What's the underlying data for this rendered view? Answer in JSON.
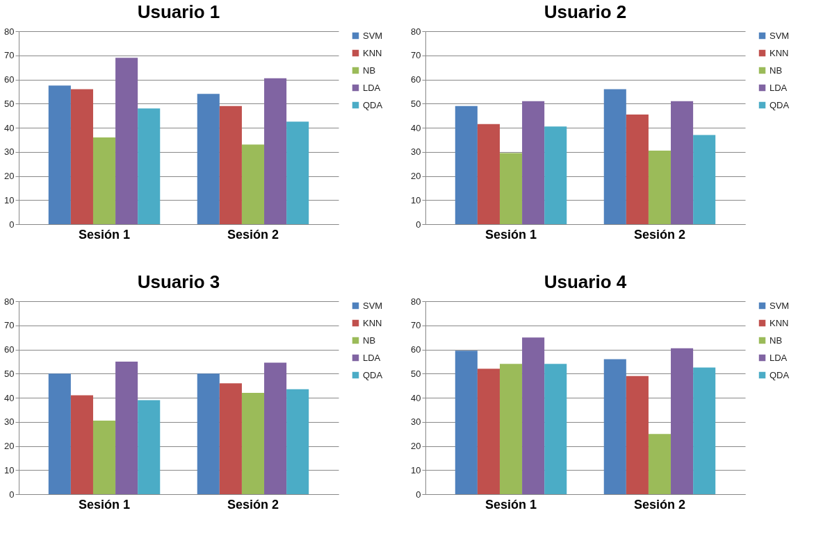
{
  "chart_data": [
    {
      "type": "bar",
      "title": "Usuario 1",
      "categories": [
        "Sesión 1",
        "Sesión 2"
      ],
      "ylim": [
        0,
        80
      ],
      "yticks": [
        0,
        10,
        20,
        30,
        40,
        50,
        60,
        70,
        80
      ],
      "grid": "y",
      "legend": "right",
      "series": [
        {
          "name": "SVM",
          "color": "#4f81bd",
          "values": [
            57.5,
            54
          ]
        },
        {
          "name": "KNN",
          "color": "#c0504d",
          "values": [
            56,
            49
          ]
        },
        {
          "name": "NB",
          "color": "#9bbb59",
          "values": [
            36,
            33
          ]
        },
        {
          "name": "LDA",
          "color": "#8064a2",
          "values": [
            69,
            60.5
          ]
        },
        {
          "name": "QDA",
          "color": "#4bacc6",
          "values": [
            48,
            42.5
          ]
        }
      ]
    },
    {
      "type": "bar",
      "title": "Usuario 2",
      "categories": [
        "Sesión 1",
        "Sesión 2"
      ],
      "ylim": [
        0,
        80
      ],
      "yticks": [
        0,
        10,
        20,
        30,
        40,
        50,
        60,
        70,
        80
      ],
      "grid": "y",
      "legend": "right",
      "series": [
        {
          "name": "SVM",
          "color": "#4f81bd",
          "values": [
            49,
            56
          ]
        },
        {
          "name": "KNN",
          "color": "#c0504d",
          "values": [
            41.5,
            45.5
          ]
        },
        {
          "name": "NB",
          "color": "#9bbb59",
          "values": [
            29.5,
            30.5
          ]
        },
        {
          "name": "LDA",
          "color": "#8064a2",
          "values": [
            51,
            51
          ]
        },
        {
          "name": "QDA",
          "color": "#4bacc6",
          "values": [
            40.5,
            37
          ]
        }
      ]
    },
    {
      "type": "bar",
      "title": "Usuario 3",
      "categories": [
        "Sesión 1",
        "Sesión 2"
      ],
      "ylim": [
        0,
        80
      ],
      "yticks": [
        0,
        10,
        20,
        30,
        40,
        50,
        60,
        70,
        80
      ],
      "grid": "y",
      "legend": "right",
      "series": [
        {
          "name": "SVM",
          "color": "#4f81bd",
          "values": [
            50,
            50
          ]
        },
        {
          "name": "KNN",
          "color": "#c0504d",
          "values": [
            41,
            46
          ]
        },
        {
          "name": "NB",
          "color": "#9bbb59",
          "values": [
            30.5,
            42
          ]
        },
        {
          "name": "LDA",
          "color": "#8064a2",
          "values": [
            55,
            54.5
          ]
        },
        {
          "name": "QDA",
          "color": "#4bacc6",
          "values": [
            39,
            43.5
          ]
        }
      ]
    },
    {
      "type": "bar",
      "title": "Usuario 4",
      "categories": [
        "Sesión 1",
        "Sesión 2"
      ],
      "ylim": [
        0,
        80
      ],
      "yticks": [
        0,
        10,
        20,
        30,
        40,
        50,
        60,
        70,
        80
      ],
      "grid": "y",
      "legend": "right",
      "series": [
        {
          "name": "SVM",
          "color": "#4f81bd",
          "values": [
            59.5,
            56
          ]
        },
        {
          "name": "KNN",
          "color": "#c0504d",
          "values": [
            52,
            49
          ]
        },
        {
          "name": "NB",
          "color": "#9bbb59",
          "values": [
            54,
            25
          ]
        },
        {
          "name": "LDA",
          "color": "#8064a2",
          "values": [
            65,
            60.5
          ]
        },
        {
          "name": "QDA",
          "color": "#4bacc6",
          "values": [
            54,
            52.5
          ]
        }
      ]
    }
  ]
}
